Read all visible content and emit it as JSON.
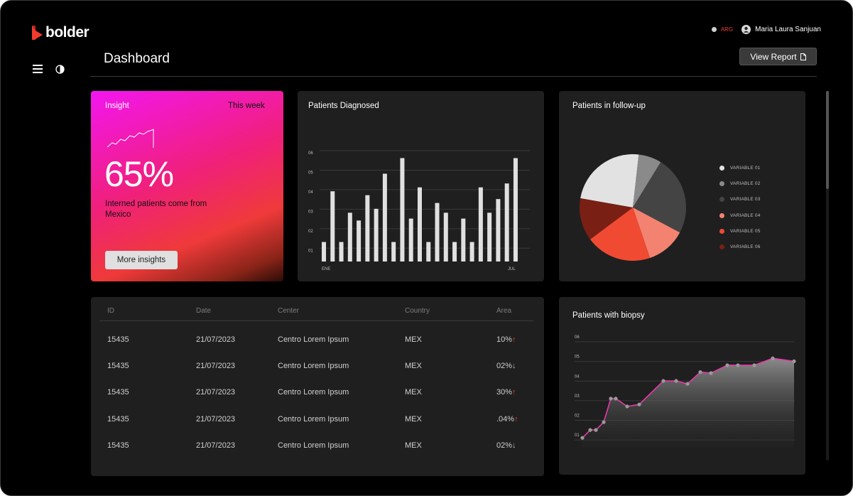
{
  "app": {
    "logo_text": "bolder",
    "title": "Dashboard"
  },
  "header": {
    "country": "ARG",
    "user_name": "Maria Laura Sanjuan",
    "view_report_label": "View Report"
  },
  "insight": {
    "label": "Insight",
    "period": "This week",
    "value": "65%",
    "description": "Interned patients come from Mexico",
    "button_label": "More insights"
  },
  "patients_diagnosed": {
    "title": "Patients Diagnosed",
    "chart_data": {
      "type": "bar",
      "y_ticks": [
        "06",
        "05",
        "04",
        "03",
        "02",
        "01"
      ],
      "x_labels_shown": [
        "ENE",
        "JUL"
      ],
      "ylim": [
        0.5,
        6
      ],
      "values": [
        1.5,
        4.1,
        1.5,
        3.0,
        2.6,
        3.9,
        3.2,
        5.0,
        1.5,
        5.8,
        2.7,
        4.3,
        1.5,
        3.5,
        3.0,
        1.5,
        2.7,
        1.5,
        4.3,
        3.0,
        3.7,
        4.5,
        5.8
      ]
    }
  },
  "follow_up": {
    "title": "Patients in follow-up",
    "chart_data": {
      "type": "pie",
      "labels": [
        "VARIABLE 01",
        "VARIABLE 02",
        "VARIABLE 03",
        "VARIABLE 04",
        "VARIABLE 05",
        "VARIABLE 06"
      ],
      "values": [
        24,
        7,
        24,
        12,
        20,
        13
      ],
      "colors": [
        "#e2e2e2",
        "#8a8a8a",
        "#444444",
        "#f38370",
        "#f04a33",
        "#7a1f14"
      ]
    }
  },
  "table": {
    "headers": [
      "ID",
      "Date",
      "Center",
      "Country",
      "Area"
    ],
    "rows": [
      {
        "id": "15435",
        "date": "21/07/2023",
        "center": "Centro Lorem Ipsum",
        "country": "MEX",
        "area": "10%",
        "arrow": "↑",
        "dir": "up"
      },
      {
        "id": "15435",
        "date": "21/07/2023",
        "center": "Centro Lorem Ipsum",
        "country": "MEX",
        "area": "02%",
        "arrow": "↓",
        "dir": "down"
      },
      {
        "id": "15435",
        "date": "21/07/2023",
        "center": "Centro Lorem Ipsum",
        "country": "MEX",
        "area": "30%",
        "arrow": "↑",
        "dir": "up"
      },
      {
        "id": "15435",
        "date": "21/07/2023",
        "center": "Centro Lorem Ipsum",
        "country": "MEX",
        "area": ".04%",
        "arrow": "↑",
        "dir": "up"
      },
      {
        "id": "15435",
        "date": "21/07/2023",
        "center": "Centro Lorem Ipsum",
        "country": "MEX",
        "area": "02%",
        "arrow": "↓",
        "dir": "down"
      }
    ]
  },
  "biopsy": {
    "title": "Patients with biopsy",
    "chart_data": {
      "type": "area",
      "y_ticks": [
        "06",
        "05",
        "04",
        "03",
        "02",
        "01"
      ],
      "ylim": [
        0.5,
        6
      ],
      "values": [
        1.0,
        1.4,
        1.4,
        1.8,
        3.0,
        3.0,
        2.6,
        2.7,
        3.9,
        3.9,
        3.75,
        4.35,
        4.3,
        4.7,
        4.7,
        4.7,
        5.05,
        4.9
      ],
      "line_color": "#e83aa8",
      "point_color": "#9a9a9a"
    }
  }
}
